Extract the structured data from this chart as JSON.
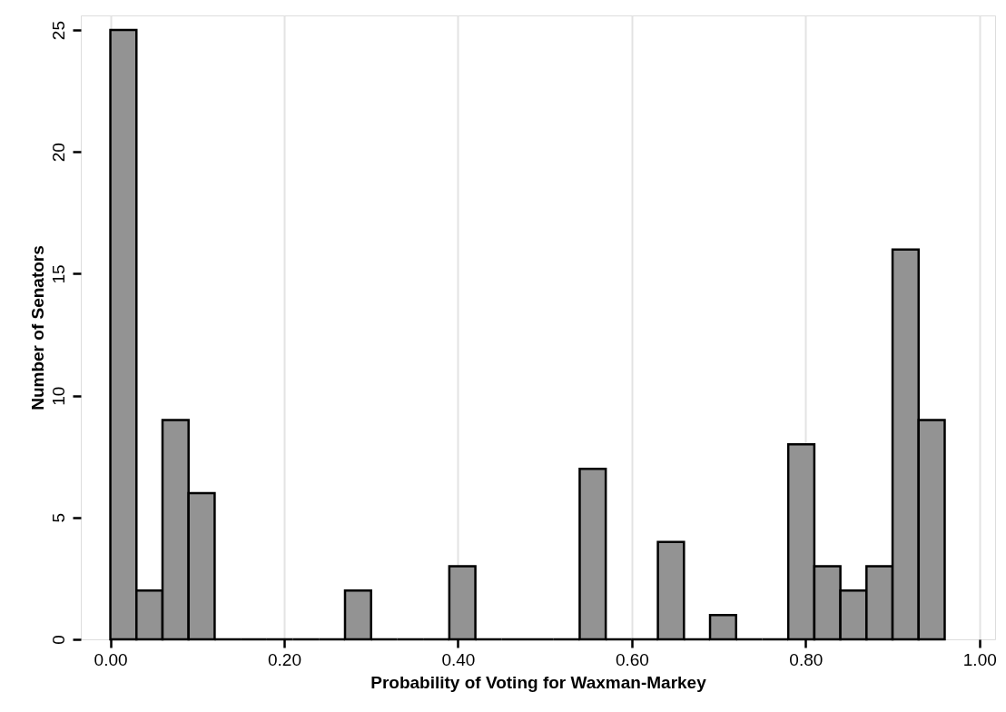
{
  "chart_data": {
    "type": "histogram",
    "xlabel": "Probability of Voting for Waxman-Markey",
    "ylabel": "Number of Senators",
    "bins": [
      0.0,
      0.03,
      0.06,
      0.09,
      0.12,
      0.15,
      0.18,
      0.21,
      0.24,
      0.27,
      0.3,
      0.33,
      0.36,
      0.39,
      0.42,
      0.45,
      0.48,
      0.51,
      0.54,
      0.57,
      0.6,
      0.63,
      0.66,
      0.69,
      0.72,
      0.75,
      0.78,
      0.81,
      0.84,
      0.87,
      0.9,
      0.93,
      0.96
    ],
    "values": [
      25,
      2,
      9,
      6,
      0,
      0,
      0,
      0,
      0,
      2,
      0,
      0,
      0,
      3,
      0,
      0,
      0,
      0,
      7,
      0,
      0,
      4,
      0,
      1,
      0,
      0,
      8,
      3,
      2,
      3,
      16,
      9
    ],
    "color": "#939393",
    "xlim": [
      -0.034,
      1.018
    ],
    "ylim": [
      0,
      25.6
    ],
    "xticks": [
      {
        "value": 0,
        "label": "0.00"
      },
      {
        "value": 0.2,
        "label": "0.20"
      },
      {
        "value": 0.4,
        "label": "0.40"
      },
      {
        "value": 0.6,
        "label": "0.60"
      },
      {
        "value": 0.8,
        "label": "0.80"
      },
      {
        "value": 1.0,
        "label": "1.00"
      }
    ],
    "yticks": [
      0,
      5,
      10,
      15,
      20,
      25
    ],
    "grid": "x"
  }
}
